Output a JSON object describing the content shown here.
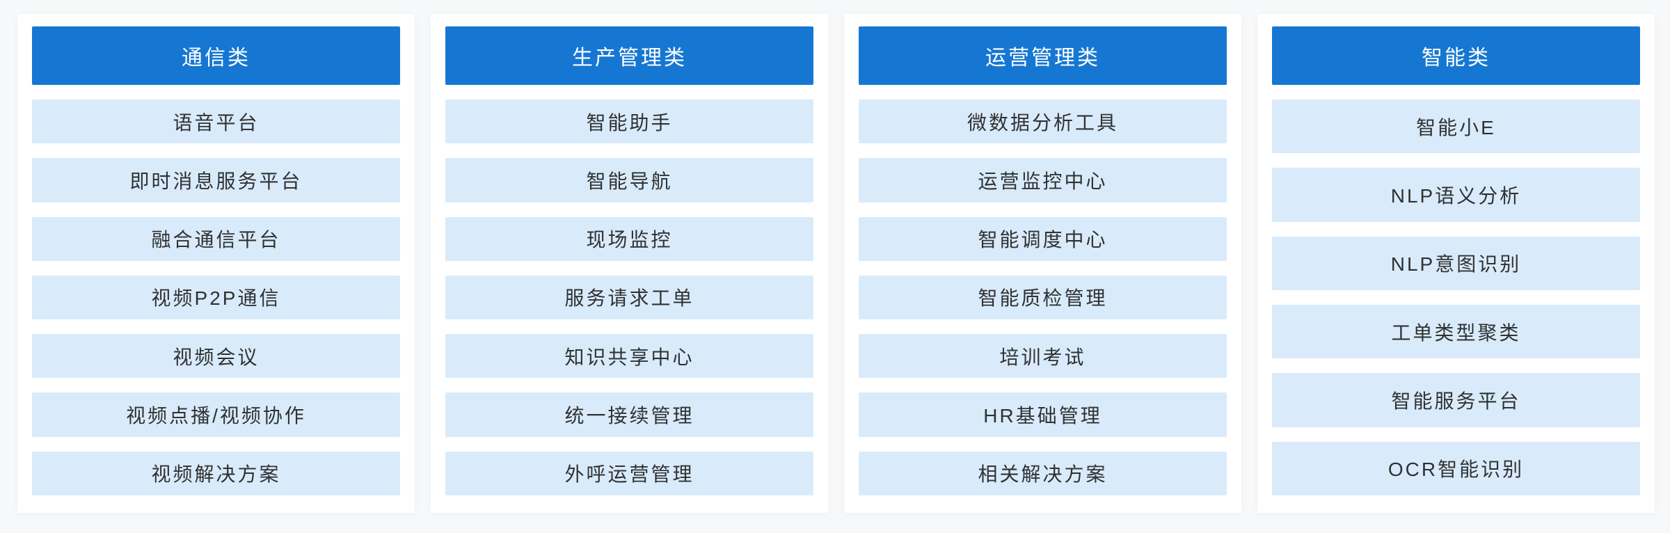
{
  "page": {
    "background_color": "#f7f8f9"
  },
  "colors": {
    "header_bg": "#1677d2",
    "header_text": "#ffffff",
    "item_bg": "#d9ebfa",
    "item_text": "#303133",
    "card_bg": "#ffffff"
  },
  "columns": [
    {
      "title": "通信类",
      "items": [
        "语音平台",
        "即时消息服务平台",
        "融合通信平台",
        "视频P2P通信",
        "视频会议",
        "视频点播/视频协作",
        "视频解决方案"
      ]
    },
    {
      "title": "生产管理类",
      "items": [
        "智能助手",
        "智能导航",
        "现场监控",
        "服务请求工单",
        "知识共享中心",
        "统一接续管理",
        "外呼运营管理"
      ]
    },
    {
      "title": "运营管理类",
      "items": [
        "微数据分析工具",
        "运营监控中心",
        "智能调度中心",
        "智能质检管理",
        "培训考试",
        "HR基础管理",
        "相关解决方案"
      ]
    },
    {
      "title": "智能类",
      "items": [
        "智能小E",
        "NLP语义分析",
        "NLP意图识别",
        "工单类型聚类",
        "智能服务平台",
        "OCR智能识别"
      ]
    }
  ]
}
